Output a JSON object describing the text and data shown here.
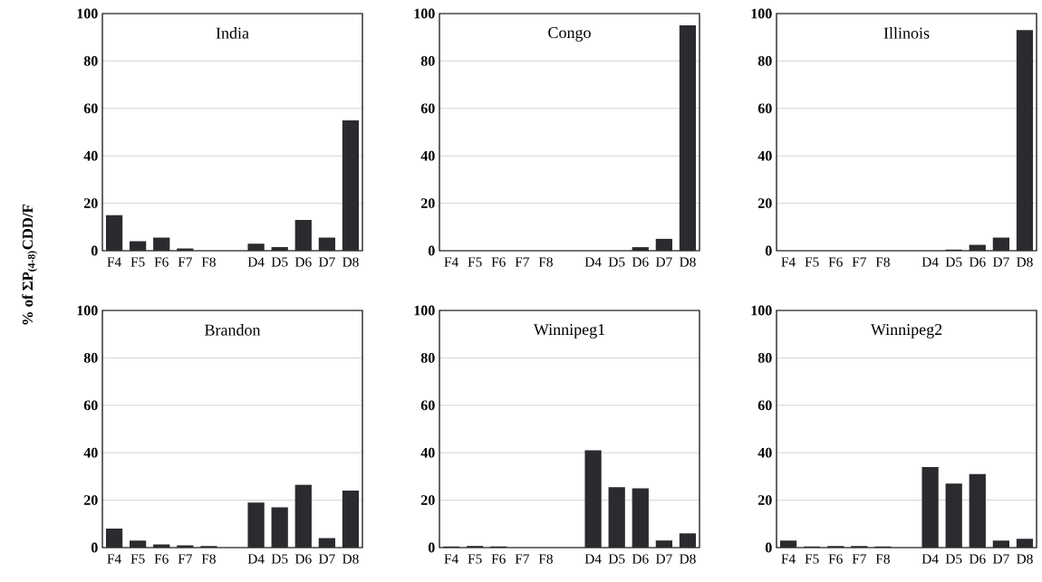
{
  "chart_data": [
    {
      "type": "bar",
      "title": "India",
      "ylabel": "% of ΣP$_{(4-8)}$CDD/F",
      "categories": [
        "F4",
        "F5",
        "F6",
        "F7",
        "F8",
        null,
        "D4",
        "D5",
        "D6",
        "D7",
        "D8"
      ],
      "values": [
        15,
        4,
        5.5,
        1,
        0,
        null,
        3,
        1.5,
        13,
        5.5,
        55
      ],
      "color": "#2b2b2f",
      "ylim": [
        0,
        100
      ],
      "yticks": [
        0,
        20,
        40,
        60,
        80,
        100
      ],
      "grid": "y"
    },
    {
      "type": "bar",
      "title": "Congo",
      "categories": [
        "F4",
        "F5",
        "F6",
        "F7",
        "F8",
        null,
        "D4",
        "D5",
        "D6",
        "D7",
        "D8"
      ],
      "values": [
        0,
        0,
        0,
        0,
        0,
        null,
        0,
        0,
        1.5,
        5,
        95
      ],
      "color": "#2b2b2f",
      "ylim": [
        0,
        100
      ],
      "yticks": [
        0,
        20,
        40,
        60,
        80,
        100
      ],
      "grid": "y"
    },
    {
      "type": "bar",
      "title": "Illinois",
      "categories": [
        "F4",
        "F5",
        "F6",
        "F7",
        "F8",
        null,
        "D4",
        "D5",
        "D6",
        "D7",
        "D8"
      ],
      "values": [
        0,
        0,
        0,
        0,
        0,
        null,
        0,
        0.5,
        2.5,
        5.5,
        93
      ],
      "color": "#2b2b2f",
      "ylim": [
        0,
        100
      ],
      "yticks": [
        0,
        20,
        40,
        60,
        80,
        100
      ],
      "grid": "y"
    },
    {
      "type": "bar",
      "title": "Brandon",
      "categories": [
        "F4",
        "F5",
        "F6",
        "F7",
        "F8",
        null,
        "D4",
        "D5",
        "D6",
        "D7",
        "D8"
      ],
      "values": [
        8,
        3,
        1.3,
        1,
        0.7,
        null,
        19,
        17,
        26.5,
        4,
        24
      ],
      "color": "#2b2b2f",
      "ylim": [
        0,
        100
      ],
      "yticks": [
        0,
        20,
        40,
        60,
        80,
        100
      ],
      "grid": "y"
    },
    {
      "type": "bar",
      "title": "Winnipeg1",
      "categories": [
        "F4",
        "F5",
        "F6",
        "F7",
        "F8",
        null,
        "D4",
        "D5",
        "D6",
        "D7",
        "D8"
      ],
      "values": [
        0.5,
        0.7,
        0.5,
        0,
        0,
        null,
        41,
        25.5,
        25,
        3,
        6
      ],
      "color": "#2b2b2f",
      "ylim": [
        0,
        100
      ],
      "yticks": [
        0,
        20,
        40,
        60,
        80,
        100
      ],
      "grid": "y"
    },
    {
      "type": "bar",
      "title": "Winnipeg2",
      "categories": [
        "F4",
        "F5",
        "F6",
        "F7",
        "F8",
        null,
        "D4",
        "D5",
        "D6",
        "D7",
        "D8"
      ],
      "values": [
        3,
        0.5,
        0.7,
        0.7,
        0.5,
        null,
        34,
        27,
        31,
        3,
        3.7
      ],
      "color": "#2b2b2f",
      "ylim": [
        0,
        100
      ],
      "yticks": [
        0,
        20,
        40,
        60,
        80,
        100
      ],
      "grid": "y"
    }
  ]
}
